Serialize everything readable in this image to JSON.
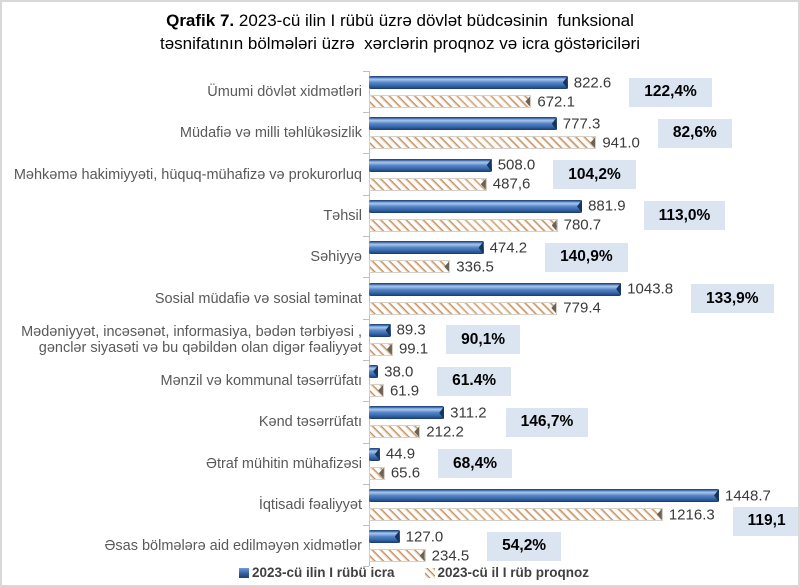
{
  "title": {
    "prefix": "Qrafik 7.",
    "line1_rest": " 2023-cü ilin I rübü üzrə dövlət büdcəsinin  funksional",
    "line2": "təsnifatının bölmələri üzrə  xərclərin proqnoz və icra göstəriciləri"
  },
  "legend": {
    "icra_label": "2023-cü ilin I rübü icra",
    "proqnoz_label": "2023-cü il I rüb proqnoz"
  },
  "colors": {
    "icra_bar": "#3f6db5",
    "proqnoz_stripe": "#c1946a",
    "percent_box_bg": "#dbe5f1",
    "category_text": "#595959",
    "axis_line": "#bfbfbf"
  },
  "chart_data": {
    "type": "bar",
    "orientation": "horizontal",
    "title": "Qrafik 7. 2023-cü ilin I rübü üzrə dövlət büdcəsinin funksional təsnifatının bölmələri üzrə xərclərin proqnoz və icra göstəriciləri",
    "xlabel": "",
    "ylabel": "",
    "xlim": [
      0,
      1500
    ],
    "grid": false,
    "legend_position": "bottom",
    "series_names": [
      "2023-cü ilin I rübü icra",
      "2023-cü il I rüb proqnoz"
    ],
    "rows": [
      {
        "category": "Ümumi dövlət xidmətləri",
        "icra": 822.6,
        "icra_label": "822.6",
        "proqnoz": 672.1,
        "proqnoz_label": "672.1",
        "percent": "122,4%"
      },
      {
        "category": "Müdafiə və milli təhlükəsizlik",
        "icra": 777.3,
        "icra_label": "777.3",
        "proqnoz": 941.0,
        "proqnoz_label": "941.0",
        "percent": "82,6%"
      },
      {
        "category": "Məhkəmə hakimiyyəti, hüquq-mühafizə və prokurorluq",
        "icra": 508.0,
        "icra_label": "508.0",
        "proqnoz": 487.6,
        "proqnoz_label": "487,6",
        "percent": "104,2%"
      },
      {
        "category": "Təhsil",
        "icra": 881.9,
        "icra_label": "881.9",
        "proqnoz": 780.7,
        "proqnoz_label": "780.7",
        "percent": "113,0%"
      },
      {
        "category": "Səhiyyə",
        "icra": 474.2,
        "icra_label": "474.2",
        "proqnoz": 336.5,
        "proqnoz_label": "336.5",
        "percent": "140,9%"
      },
      {
        "category": "Sosial müdafiə və sosial təminat",
        "icra": 1043.8,
        "icra_label": "1043.8",
        "proqnoz": 779.4,
        "proqnoz_label": "779.4",
        "percent": "133,9%"
      },
      {
        "category": "Mədəniyyət, incəsənət, informasiya, bədən tərbiyəsi , gənclər siyasəti və bu qəbildən olan digər fəaliyyət",
        "icra": 89.3,
        "icra_label": "89.3",
        "proqnoz": 99.1,
        "proqnoz_label": "99.1",
        "percent": "90,1%"
      },
      {
        "category": "Mənzil və kommunal təsərrüfatı",
        "icra": 38.0,
        "icra_label": "38.0",
        "proqnoz": 61.9,
        "proqnoz_label": "61.9",
        "percent": "61.4%"
      },
      {
        "category": "Kənd təsərrüfatı",
        "icra": 311.2,
        "icra_label": "311.2",
        "proqnoz": 212.2,
        "proqnoz_label": "212.2",
        "percent": "146,7%"
      },
      {
        "category": "Ətraf mühitin mühafizəsi",
        "icra": 44.9,
        "icra_label": "44.9",
        "proqnoz": 65.6,
        "proqnoz_label": "65.6",
        "percent": "68,4%"
      },
      {
        "category": "İqtisadi fəaliyyət",
        "icra": 1448.7,
        "icra_label": "1448.7",
        "proqnoz": 1216.3,
        "proqnoz_label": "1216.3",
        "percent": "119,1",
        "box": {
          "after": "proqnoz",
          "dy": 16
        }
      },
      {
        "category": "Əsas bölmələrə aid edilməyən xidmətlər",
        "icra": 127.0,
        "icra_label": "127.0",
        "proqnoz": 234.5,
        "proqnoz_label": "234.5",
        "percent": "54,2%"
      }
    ]
  }
}
